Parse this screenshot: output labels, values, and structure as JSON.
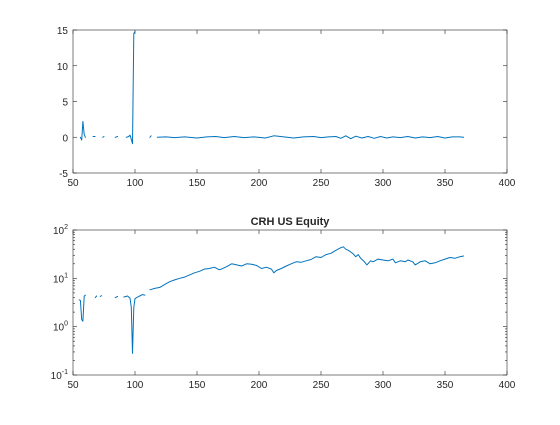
{
  "colors": {
    "series": "#0072bd",
    "axes": "#262626",
    "background": "#ffffff"
  },
  "chart_data": [
    {
      "type": "line",
      "title": "",
      "xlabel": "",
      "ylabel": "",
      "xlim": [
        50,
        400
      ],
      "ylim": [
        -5,
        15
      ],
      "yscale": "linear",
      "grid": false,
      "xticks": [
        "50",
        "100",
        "150",
        "200",
        "250",
        "300",
        "350",
        "400"
      ],
      "yticks": [
        "-5",
        "0",
        "5",
        "10",
        "15"
      ],
      "series": [
        {
          "segments": [
            [
              [
                56,
                0
              ],
              [
                57,
                -0.4
              ],
              [
                58,
                2.2
              ],
              [
                59,
                0.4
              ],
              [
                60,
                0
              ]
            ],
            [
              [
                67,
                0.1
              ]
            ],
            [
              [
                74,
                0
              ],
              [
                75,
                0.1
              ]
            ],
            [
              [
                84,
                0
              ],
              [
                86,
                0.1
              ]
            ],
            [
              [
                93,
                0
              ],
              [
                95,
                0.1
              ],
              [
                96,
                0.3
              ],
              [
                97,
                -0.3
              ],
              [
                98,
                -0.9
              ],
              [
                99,
                14.5
              ],
              [
                100,
                14.8
              ]
            ],
            [
              [
                112,
                0
              ],
              [
                113,
                0.2
              ]
            ],
            [
              [
                118,
                0
              ],
              [
                125,
                0.05
              ],
              [
                132,
                -0.05
              ],
              [
                140,
                0.05
              ],
              [
                150,
                -0.1
              ],
              [
                158,
                0.05
              ],
              [
                165,
                0.1
              ],
              [
                172,
                -0.05
              ],
              [
                180,
                0.1
              ],
              [
                188,
                -0.05
              ],
              [
                196,
                0.05
              ],
              [
                205,
                -0.1
              ],
              [
                212,
                0.2
              ],
              [
                220,
                0.05
              ],
              [
                228,
                -0.1
              ],
              [
                236,
                0.05
              ],
              [
                244,
                0.1
              ],
              [
                250,
                -0.05
              ],
              [
                256,
                0.05
              ],
              [
                262,
                0.1
              ],
              [
                266,
                -0.15
              ],
              [
                270,
                0.2
              ],
              [
                274,
                -0.2
              ],
              [
                278,
                0.15
              ],
              [
                283,
                -0.1
              ],
              [
                288,
                0.1
              ],
              [
                293,
                -0.15
              ],
              [
                298,
                0.1
              ],
              [
                303,
                -0.1
              ],
              [
                308,
                0.05
              ],
              [
                314,
                -0.05
              ],
              [
                320,
                0.1
              ],
              [
                326,
                -0.1
              ],
              [
                332,
                0.05
              ],
              [
                338,
                -0.05
              ],
              [
                344,
                0.1
              ],
              [
                350,
                -0.1
              ],
              [
                356,
                0.05
              ],
              [
                362,
                0.05
              ],
              [
                365,
                0
              ]
            ]
          ]
        }
      ]
    },
    {
      "type": "line",
      "title": "CRH US Equity",
      "xlabel": "",
      "ylabel": "",
      "xlim": [
        50,
        400
      ],
      "ylim": [
        0.1,
        100
      ],
      "yscale": "log",
      "grid": false,
      "xticks": [
        "50",
        "100",
        "150",
        "200",
        "250",
        "300",
        "350",
        "400"
      ],
      "yticks": [
        {
          "base": "10",
          "exp": "-1",
          "value": 0.1
        },
        {
          "base": "10",
          "exp": "0",
          "value": 1
        },
        {
          "base": "10",
          "exp": "1",
          "value": 10
        },
        {
          "base": "10",
          "exp": "2",
          "value": 100
        }
      ],
      "series": [
        {
          "segments": [
            [
              [
                55,
                3.6
              ],
              [
                56,
                3.5
              ],
              [
                57,
                1.4
              ],
              [
                58,
                1.3
              ],
              [
                59,
                4.3
              ],
              [
                60,
                4.5
              ]
            ],
            [
              [
                68,
                4.0
              ],
              [
                69,
                4.3
              ]
            ],
            [
              [
                72,
                4.2
              ],
              [
                73,
                4.4
              ]
            ],
            [
              [
                84,
                4.0
              ],
              [
                86,
                4.2
              ]
            ],
            [
              [
                91,
                4.1
              ],
              [
                94,
                4.3
              ],
              [
                96,
                3.9
              ],
              [
                97,
                2.5
              ],
              [
                98,
                0.28
              ],
              [
                99,
                2.5
              ],
              [
                100,
                3.8
              ],
              [
                103,
                4.2
              ],
              [
                106,
                4.6
              ],
              [
                108,
                4.5
              ]
            ],
            [
              [
                112,
                5.8
              ],
              [
                116,
                6.2
              ],
              [
                120,
                6.5
              ],
              [
                124,
                7.5
              ],
              [
                128,
                8.5
              ],
              [
                132,
                9.3
              ],
              [
                136,
                10
              ],
              [
                140,
                10.6
              ],
              [
                144,
                11.8
              ],
              [
                148,
                13
              ],
              [
                152,
                14
              ],
              [
                156,
                15.5
              ],
              [
                160,
                16
              ],
              [
                164,
                17
              ],
              [
                168,
                15
              ],
              [
                170,
                15.7
              ],
              [
                174,
                17.5
              ],
              [
                178,
                20
              ],
              [
                182,
                19
              ],
              [
                186,
                18
              ],
              [
                190,
                20
              ],
              [
                194,
                19.5
              ],
              [
                198,
                18.5
              ],
              [
                202,
                16
              ],
              [
                206,
                17
              ],
              [
                210,
                15.5
              ],
              [
                212,
                13
              ],
              [
                214,
                14.5
              ],
              [
                218,
                16
              ],
              [
                222,
                18
              ],
              [
                226,
                20
              ],
              [
                230,
                22
              ],
              [
                234,
                21.5
              ],
              [
                238,
                23
              ],
              [
                242,
                24.5
              ],
              [
                246,
                28
              ],
              [
                250,
                27
              ],
              [
                254,
                31
              ],
              [
                258,
                33
              ],
              [
                262,
                38
              ],
              [
                266,
                43
              ],
              [
                268,
                45
              ],
              [
                270,
                40
              ],
              [
                272,
                38
              ],
              [
                274,
                35
              ],
              [
                276,
                32
              ],
              [
                278,
                28
              ],
              [
                280,
                31
              ],
              [
                282,
                26
              ],
              [
                285,
                22
              ],
              [
                287,
                19
              ],
              [
                290,
                23
              ],
              [
                292,
                22
              ],
              [
                296,
                25
              ],
              [
                300,
                24
              ],
              [
                304,
                23
              ],
              [
                308,
                25
              ],
              [
                310,
                21
              ],
              [
                314,
                23
              ],
              [
                318,
                22
              ],
              [
                320,
                24
              ],
              [
                324,
                22
              ],
              [
                326,
                19
              ],
              [
                330,
                22
              ],
              [
                334,
                23
              ],
              [
                338,
                20
              ],
              [
                342,
                21
              ],
              [
                346,
                23
              ],
              [
                350,
                25
              ],
              [
                354,
                27
              ],
              [
                358,
                26
              ],
              [
                362,
                28
              ],
              [
                365,
                29
              ]
            ]
          ]
        }
      ]
    }
  ]
}
